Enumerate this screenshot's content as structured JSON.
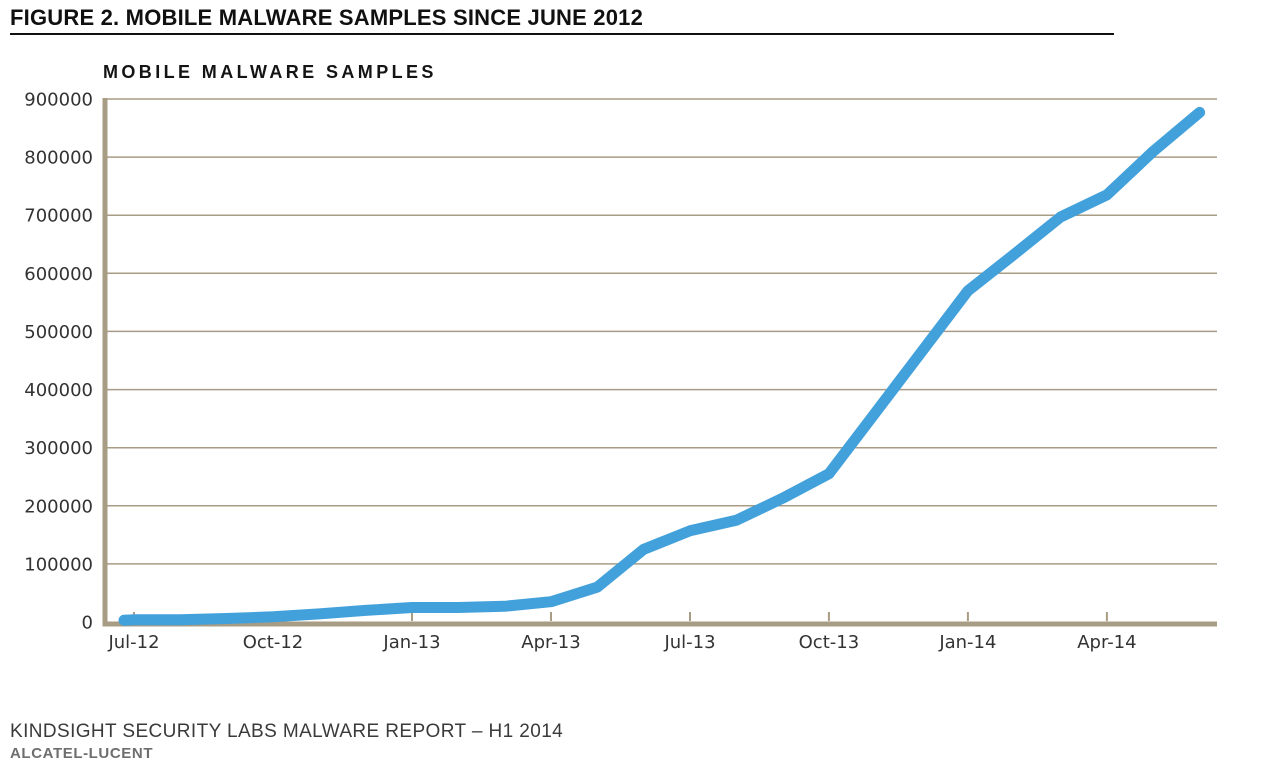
{
  "page": {
    "figure_title": "FIGURE 2. MOBILE MALWARE SAMPLES SINCE JUNE 2012",
    "footer": {
      "report": "KINDSIGHT SECURITY LABS MALWARE REPORT – H1 2014",
      "brand": "ALCATEL-LUCENT"
    }
  },
  "chart_data": {
    "type": "line",
    "title": "MOBILE MALWARE SAMPLES",
    "series_name": "Mobile malware samples",
    "x": [
      "Jun-12",
      "Jul-12",
      "Aug-12",
      "Sep-12",
      "Oct-12",
      "Nov-12",
      "Dec-12",
      "Jan-13",
      "Feb-13",
      "Mar-13",
      "Apr-13",
      "May-13",
      "Jun-13",
      "Jul-13",
      "Aug-13",
      "Sep-13",
      "Oct-13",
      "Nov-13",
      "Dec-13",
      "Jan-14",
      "Feb-14",
      "Mar-14",
      "Apr-14",
      "May-14",
      "Jun-14"
    ],
    "values": [
      3000,
      4000,
      4000,
      6000,
      9000,
      14000,
      20000,
      25000,
      25000,
      27000,
      35000,
      60000,
      125000,
      157000,
      175000,
      213000,
      255000,
      360000,
      465000,
      570000,
      633000,
      697000,
      735000,
      810000,
      877000
    ],
    "x_tick_labels": [
      "Jul-12",
      "Oct-12",
      "Jan-13",
      "Apr-13",
      "Jul-13",
      "Oct-13",
      "Jan-14",
      "Apr-14"
    ],
    "y_ticks": [
      0,
      100000,
      200000,
      300000,
      400000,
      500000,
      600000,
      700000,
      800000,
      900000
    ],
    "ylim": [
      0,
      900000
    ],
    "xlabel": "",
    "ylabel": "",
    "grid": "horizontal",
    "legend": "none",
    "colors": {
      "line": "#42a1db",
      "grid": "#a89c84",
      "axis": "#a89c84",
      "tick_text": "#333333"
    }
  }
}
